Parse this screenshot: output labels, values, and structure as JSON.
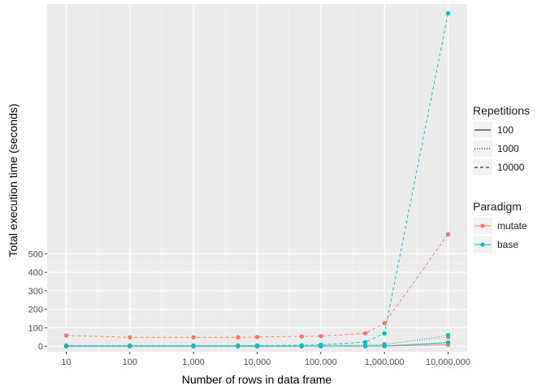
{
  "chart_data": {
    "type": "line",
    "xlabel": "Number of rows in data frame",
    "ylabel": "Total execution time (seconds)",
    "x_scale": "log10",
    "x_ticks": [
      10,
      100,
      1000,
      10000,
      100000,
      1000000,
      10000000
    ],
    "x_tick_labels": [
      "10",
      "100",
      "1,000",
      "10,000",
      "100,000",
      "1,000,000",
      "10,000,000"
    ],
    "y_ticks": [
      0,
      100,
      200,
      300,
      400,
      500
    ],
    "y_tick_labels": [
      "0",
      "100",
      "200",
      "300",
      "400",
      "500"
    ],
    "ylim": [
      -30,
      1850
    ],
    "grid": true,
    "legend_placement": "right",
    "x": [
      10,
      100,
      1000,
      5000,
      10000,
      50000,
      100000,
      500000,
      1000000,
      10000000
    ],
    "series": [
      {
        "paradigm": "mutate",
        "repetitions": "100",
        "color": "#F8766D",
        "linetype": "solid",
        "values": [
          0.5,
          0.5,
          0.5,
          0.5,
          0.5,
          0.5,
          0.6,
          0.8,
          1.2,
          8
        ]
      },
      {
        "paradigm": "mutate",
        "repetitions": "1000",
        "color": "#F8766D",
        "linetype": "dotted",
        "values": [
          5,
          5,
          5,
          5,
          5,
          5,
          5.5,
          7,
          12,
          50
        ]
      },
      {
        "paradigm": "mutate",
        "repetitions": "10000",
        "color": "#F8766D",
        "linetype": "dashed",
        "values": [
          58,
          48,
          48,
          48,
          50,
          53,
          55,
          70,
          125,
          605
        ]
      },
      {
        "paradigm": "base",
        "repetitions": "100",
        "color": "#00BFC4",
        "linetype": "solid",
        "values": [
          0.2,
          0.2,
          0.2,
          0.2,
          0.2,
          0.3,
          0.3,
          0.5,
          1,
          20
        ]
      },
      {
        "paradigm": "base",
        "repetitions": "1000",
        "color": "#00BFC4",
        "linetype": "dotted",
        "values": [
          1,
          1,
          1,
          1,
          1,
          1.2,
          1.5,
          3,
          8,
          60
        ]
      },
      {
        "paradigm": "base",
        "repetitions": "10000",
        "color": "#00BFC4",
        "linetype": "dashed",
        "values": [
          2,
          2,
          2,
          2,
          3,
          5,
          8,
          22,
          70,
          1800
        ]
      }
    ]
  },
  "legend": {
    "repetitions": {
      "title": "Repetitions",
      "items": [
        "100",
        "1000",
        "10000"
      ]
    },
    "paradigm": {
      "title": "Paradigm",
      "items": [
        "mutate",
        "base"
      ]
    }
  },
  "colors": {
    "mutate": "#F8766D",
    "base": "#00BFC4",
    "panel": "#EBEBEB",
    "grid": "#FFFFFF"
  }
}
